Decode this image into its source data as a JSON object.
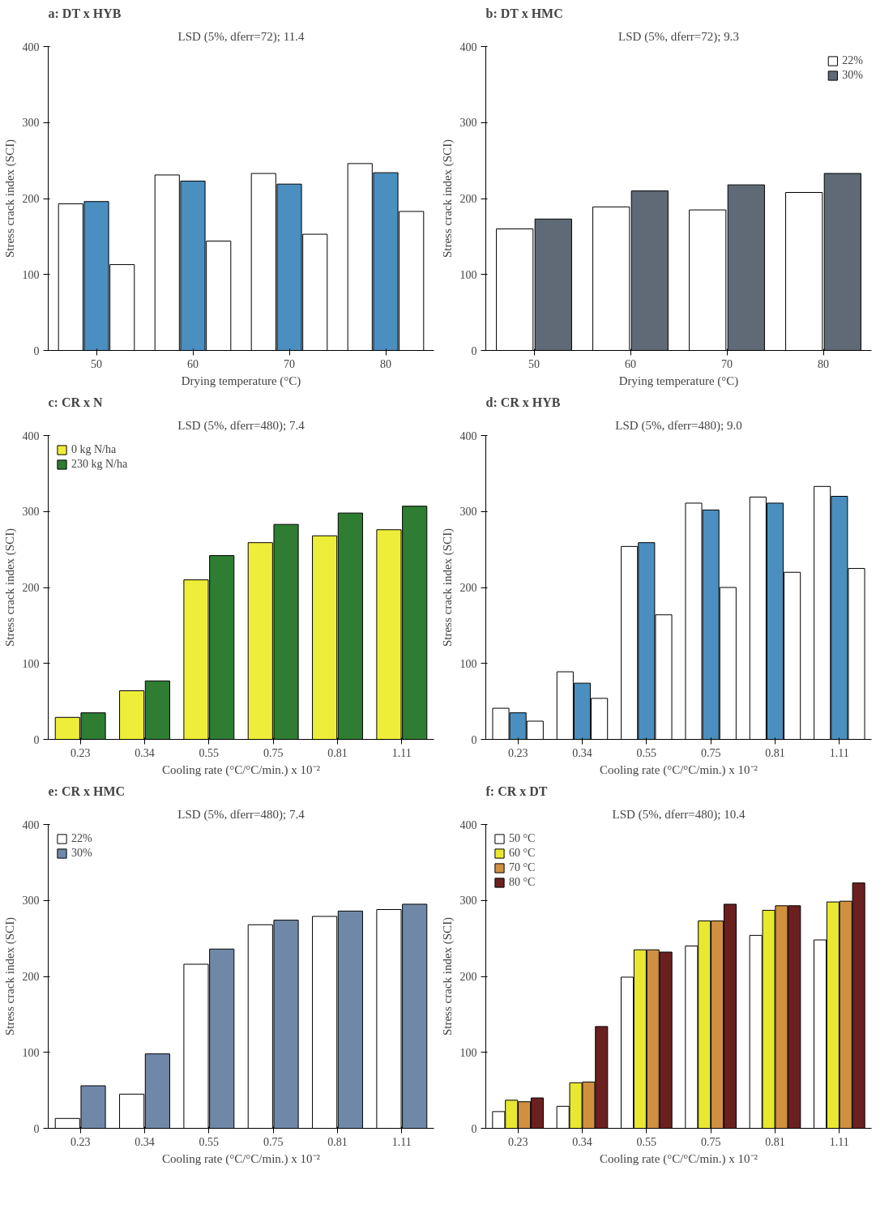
{
  "chart_data": [
    {
      "type": "bar",
      "title": "a: DT x HYB",
      "subtitle": "LSD (5%, dferr=72); 11.4",
      "xlabel": "Drying temperature (°C)",
      "ylabel": "Stress crack index (SCI)",
      "categories": [
        "50",
        "60",
        "70",
        "80"
      ],
      "ylim": [
        0,
        400
      ],
      "yticks": [
        0,
        100,
        200,
        300,
        400
      ],
      "series": [
        {
          "color": "#ffffff",
          "values": [
            193,
            231,
            233,
            246
          ]
        },
        {
          "color": "#4a8fc0",
          "values": [
            196,
            223,
            219,
            234
          ]
        },
        {
          "color": "#ffffff",
          "values": [
            113,
            144,
            153,
            183
          ]
        }
      ]
    },
    {
      "type": "bar",
      "title": "b: DT x HMC",
      "subtitle": "LSD (5%, dferr=72); 9.3",
      "xlabel": "Drying temperature (°C)",
      "ylabel": "Stress crack index (SCI)",
      "categories": [
        "50",
        "60",
        "70",
        "80"
      ],
      "ylim": [
        0,
        400
      ],
      "yticks": [
        0,
        100,
        200,
        300,
        400
      ],
      "legend": "top right",
      "series": [
        {
          "name": "22%",
          "color": "#ffffff",
          "values": [
            160,
            189,
            185,
            208
          ]
        },
        {
          "name": "30%",
          "color": "#5f6a76",
          "values": [
            173,
            210,
            218,
            233
          ]
        }
      ]
    },
    {
      "type": "bar",
      "title": "c: CR x N",
      "subtitle": "LSD (5%, dferr=480); 7.4",
      "xlabel": "Cooling rate (°C/°C/min.) x 10⁻²",
      "ylabel": "Stress crack index (SCI)",
      "categories": [
        "0.23",
        "0.34",
        "0.55",
        "0.75",
        "0.81",
        "1.11"
      ],
      "ylim": [
        0,
        400
      ],
      "yticks": [
        0,
        100,
        200,
        300,
        400
      ],
      "legend": "top left",
      "series": [
        {
          "name": "0 kg N/ha",
          "color": "#eeee3a",
          "values": [
            29,
            64,
            210,
            259,
            268,
            276
          ]
        },
        {
          "name": "230 kg N/ha",
          "color": "#2e7d32",
          "values": [
            35,
            77,
            242,
            283,
            298,
            307
          ]
        }
      ]
    },
    {
      "type": "bar",
      "title": "d: CR x HYB",
      "subtitle": "LSD (5%, dferr=480); 9.0",
      "xlabel": "Cooling rate (°C/°C/min.) x 10⁻²",
      "ylabel": "Stress crack index (SCI)",
      "categories": [
        "0.23",
        "0.34",
        "0.55",
        "0.75",
        "0.81",
        "1.11"
      ],
      "ylim": [
        0,
        400
      ],
      "yticks": [
        0,
        100,
        200,
        300,
        400
      ],
      "series": [
        {
          "color": "#ffffff",
          "values": [
            41,
            89,
            254,
            311,
            319,
            333
          ]
        },
        {
          "color": "#4a8fc0",
          "values": [
            35,
            74,
            259,
            302,
            311,
            320
          ]
        },
        {
          "color": "#ffffff",
          "values": [
            24,
            54,
            164,
            200,
            220,
            225
          ]
        }
      ]
    },
    {
      "type": "bar",
      "title": "e: CR x HMC",
      "subtitle": "LSD (5%, dferr=480); 7.4",
      "xlabel": "Cooling rate (°C/°C/min.) x 10⁻²",
      "ylabel": "Stress crack index (SCI)",
      "categories": [
        "0.23",
        "0.34",
        "0.55",
        "0.75",
        "0.81",
        "1.11"
      ],
      "ylim": [
        0,
        400
      ],
      "yticks": [
        0,
        100,
        200,
        300,
        400
      ],
      "legend": "top left",
      "series": [
        {
          "name": "22%",
          "color": "#ffffff",
          "values": [
            13,
            45,
            216,
            268,
            279,
            288
          ]
        },
        {
          "name": "30%",
          "color": "#7088a8",
          "values": [
            56,
            98,
            236,
            274,
            286,
            295
          ]
        }
      ]
    },
    {
      "type": "bar",
      "title": "f: CR x DT",
      "subtitle": "LSD (5%, dferr=480); 10.4",
      "xlabel": "Cooling rate (°C/°C/min.) x 10⁻²",
      "ylabel": "Stress crack index (SCI)",
      "categories": [
        "0.23",
        "0.34",
        "0.55",
        "0.75",
        "0.81",
        "1.11"
      ],
      "ylim": [
        0,
        400
      ],
      "yticks": [
        0,
        100,
        200,
        300,
        400
      ],
      "legend": "top left",
      "series": [
        {
          "name": "50 °C",
          "color": "#ffffff",
          "values": [
            22,
            29,
            199,
            240,
            254,
            248
          ]
        },
        {
          "name": "60 °C",
          "color": "#e8e830",
          "values": [
            37,
            60,
            235,
            273,
            287,
            298
          ]
        },
        {
          "name": "70 °C",
          "color": "#d09040",
          "values": [
            35,
            61,
            235,
            273,
            293,
            299
          ]
        },
        {
          "name": "80 °C",
          "color": "#6b2020",
          "values": [
            40,
            134,
            232,
            295,
            293,
            323
          ]
        }
      ]
    }
  ]
}
